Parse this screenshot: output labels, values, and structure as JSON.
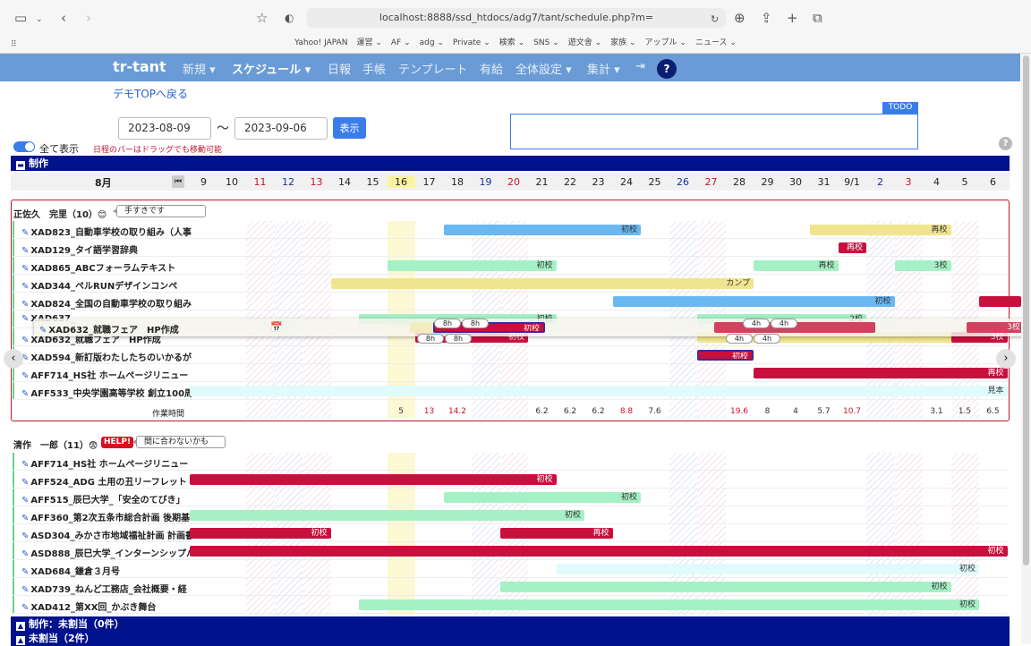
{
  "browser": {
    "url": "localhost:8888/ssd_htdocs/adg7/tant/schedule.php?m=",
    "bookmarks": [
      "Yahoo! JAPAN",
      "運営 ⌄",
      "AF ⌄",
      "adg ⌄",
      "Private ⌄",
      "検索 ⌄",
      "SNS ⌄",
      "遊文舎 ⌄",
      "家族 ⌄",
      "アップル ⌄",
      "ニュース ⌄"
    ]
  },
  "nav": {
    "brand": "tr-tant",
    "items": [
      "新規 ▾",
      "スケジュール ▾",
      "日報",
      "手帳",
      "テンプレート",
      "有給",
      "全体設定 ▾",
      "集計 ▾"
    ],
    "help": "?"
  },
  "demo_link": "デモTOPへ戻る",
  "filter": {
    "from": "2023-08-09",
    "tilde": "〜",
    "to": "2023-09-06",
    "show_button": "表示",
    "todo_label": "TODO",
    "show_all": "全て表示",
    "drag_hint": "日程のバーはドラッグでも移動可能"
  },
  "sections": {
    "seisaku": "制作",
    "unassigned_prod": "制作：未割当（0件）",
    "unassigned": "未割当（2件）"
  },
  "calendar": {
    "month": "8月",
    "days": [
      "9",
      "10",
      "11",
      "12",
      "13",
      "14",
      "15",
      "16",
      "17",
      "18",
      "19",
      "20",
      "21",
      "22",
      "23",
      "24",
      "25",
      "26",
      "27",
      "28",
      "29",
      "30",
      "31",
      "9/1",
      "2",
      "3",
      "4",
      "5",
      "6"
    ]
  },
  "group1": {
    "person": "正佐久　完里（10）😊",
    "bubble": "手すきです",
    "rows": [
      {
        "label": "XAD823_自動車学校の取り組み（人事",
        "bars": [
          {
            "t": "初校"
          },
          {
            "t": "再校"
          }
        ]
      },
      {
        "label": "XAD129_タイ語学習辞典",
        "bars": [
          {
            "t": "再校"
          }
        ]
      },
      {
        "label": "XAD865_ABCフォーラムテキスト",
        "bars": [
          {
            "t": "初校"
          },
          {
            "t": "再校"
          },
          {
            "t": "3校"
          }
        ]
      },
      {
        "label": "XAD344_ペルRUNデザインコンペ",
        "bars": [
          {
            "t": "カンプ"
          }
        ]
      },
      {
        "label": "XAD824_全国の自動車学校の取り組み",
        "bars": [
          {
            "t": "初校"
          },
          {
            "t": ""
          }
        ]
      },
      {
        "label": "XAD637_",
        "bars": [
          {
            "t": "初校"
          },
          {
            "t": "2校"
          }
        ]
      },
      {
        "label": "XAD632_就職フェア　HP作成",
        "bars": [
          {
            "t": "初校"
          },
          {
            "t": ""
          },
          {
            "t": "3校"
          }
        ]
      },
      {
        "label": "XAD594_新訂版わたしたちのいかるが",
        "bars": [
          {
            "t": "初校"
          }
        ]
      },
      {
        "label": "AFF714_HS社 ホームページリニュー",
        "bars": [
          {
            "t": "再校"
          }
        ]
      },
      {
        "label": "AFF533_中央学園高等学校 創立100周",
        "bars": [
          {
            "t": "見本"
          }
        ]
      }
    ],
    "work_label": "作業時間",
    "work": [
      "5",
      "13",
      "14.2",
      "6.2",
      "6.2",
      "6.2",
      "8.8",
      "7.6",
      "19.6",
      "8",
      "4",
      "5.7",
      "10.7",
      "3.1",
      "1.5",
      "6.5"
    ]
  },
  "drag": {
    "label": "XAD632_就職フェア　HP作成",
    "chips": [
      "8h",
      "8h",
      "4h",
      "4h",
      "8h",
      "8h",
      "4h",
      "4h"
    ],
    "bar_labels": [
      "初校",
      "3校"
    ]
  },
  "group2": {
    "person": "清作　一郎（11）😨",
    "help": "HELP!",
    "bubble": "間に合わないかも",
    "rows": [
      {
        "label": "AFF714_HS社 ホームページリニュー",
        "bars": []
      },
      {
        "label": "AFF524_ADG 土用の丑リーフレット",
        "bars": [
          {
            "t": "初校"
          }
        ]
      },
      {
        "label": "AFF515_辰巳大学_「安全のてびき」",
        "bars": [
          {
            "t": "初校"
          }
        ]
      },
      {
        "label": "AFF360_第2次五条市総合計画 後期基",
        "bars": [
          {
            "t": "初校"
          }
        ]
      },
      {
        "label": "ASD304_みかさ市地域福祉計画 計画書",
        "bars": [
          {
            "t": "初校"
          },
          {
            "t": "再校"
          }
        ]
      },
      {
        "label": "ASD888_辰巳大学_インターンシップパ",
        "bars": [
          {
            "t": "初校"
          }
        ]
      },
      {
        "label": "XAD684_鎌倉３月号",
        "bars": [
          {
            "t": "初校"
          }
        ]
      },
      {
        "label": "XAD739_ねんど工務店_会社概要・経",
        "bars": [
          {
            "t": "初校"
          }
        ]
      },
      {
        "label": "XAD412_第XX回_かぶき舞台",
        "bars": [
          {
            "t": "初校"
          }
        ]
      }
    ]
  },
  "colors": {
    "nav": "#6a9bd6",
    "section": "#00128c",
    "accent": "#3b7de8",
    "red": "#c8103e"
  }
}
